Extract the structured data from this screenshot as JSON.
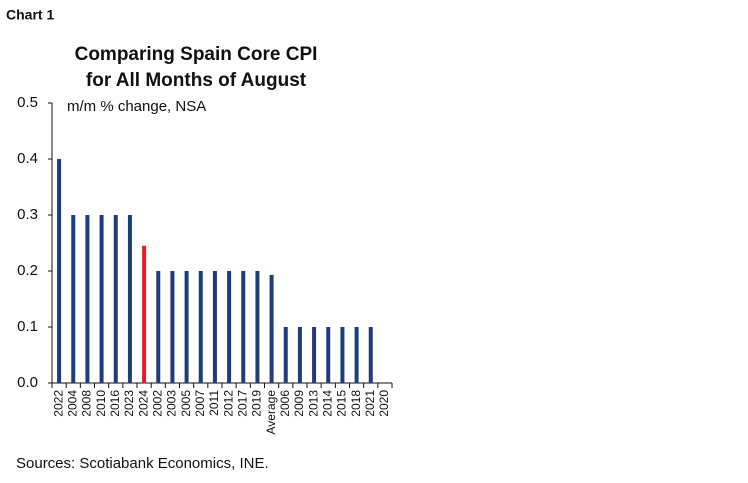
{
  "label": "Chart 1",
  "chart_data": {
    "type": "bar",
    "title": [
      "Comparing Spain Core CPI",
      "for All Months of August"
    ],
    "subtitle": "m/m % change, NSA",
    "source": "Sources: Scotiabank Economics, INE.",
    "categories": [
      "2022",
      "2004",
      "2008",
      "2010",
      "2016",
      "2023",
      "2024",
      "2002",
      "2003",
      "2005",
      "2007",
      "2011",
      "2012",
      "2017",
      "2019",
      "Average",
      "2006",
      "2009",
      "2013",
      "2014",
      "2015",
      "2018",
      "2021",
      "2020"
    ],
    "values": [
      0.4,
      0.3,
      0.3,
      0.3,
      0.3,
      0.3,
      0.245,
      0.2,
      0.2,
      0.2,
      0.2,
      0.2,
      0.2,
      0.2,
      0.2,
      0.193,
      0.1,
      0.1,
      0.1,
      0.1,
      0.1,
      0.1,
      0.1,
      0
    ],
    "colors": [
      "#1f3d7a",
      "#1f3d7a",
      "#1f3d7a",
      "#1f3d7a",
      "#1f3d7a",
      "#1f3d7a",
      "#e31e26",
      "#1f3d7a",
      "#1f3d7a",
      "#1f3d7a",
      "#1f3d7a",
      "#1f3d7a",
      "#1f3d7a",
      "#1f3d7a",
      "#1f3d7a",
      "#1f3d7a",
      "#1f3d7a",
      "#1f3d7a",
      "#1f3d7a",
      "#1f3d7a",
      "#1f3d7a",
      "#1f3d7a",
      "#1f3d7a",
      "#1f3d7a"
    ],
    "ylim": [
      0,
      0.5
    ],
    "yticks": [
      {
        "value": 0,
        "label": "0.0"
      },
      0.1,
      0.2,
      0.3,
      0.4,
      0.5
    ],
    "grid": false
  }
}
